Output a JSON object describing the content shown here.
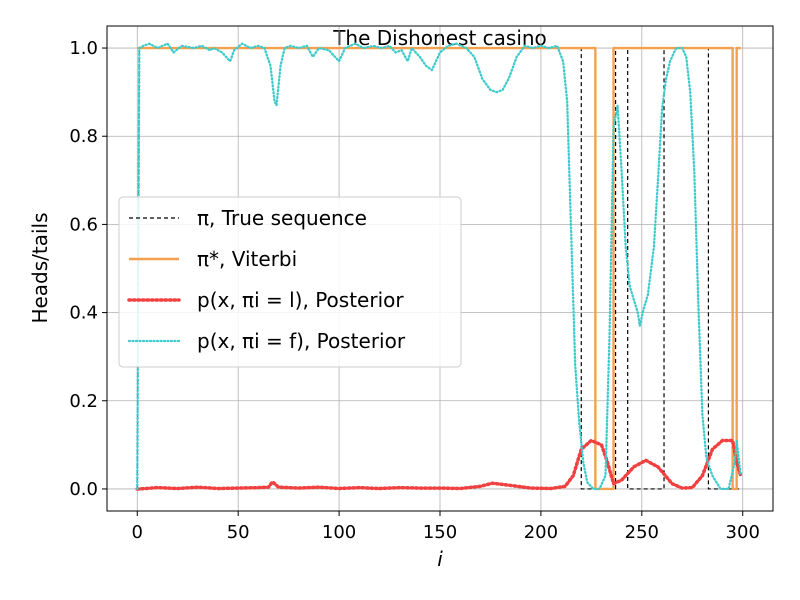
{
  "chart_data": {
    "type": "line",
    "title": "The Dishonest casino",
    "xlabel": "i",
    "ylabel": "Heads/tails",
    "xlim": [
      -15,
      315
    ],
    "ylim": [
      -0.05,
      1.05
    ],
    "xticks": [
      0,
      50,
      100,
      150,
      200,
      250,
      300
    ],
    "xtick_labels": [
      "0",
      "50",
      "100",
      "150",
      "200",
      "250",
      "300"
    ],
    "yticks": [
      0.0,
      0.2,
      0.4,
      0.6,
      0.8,
      1.0
    ],
    "ytick_labels": [
      "0.0",
      "0.2",
      "0.4",
      "0.6",
      "0.8",
      "1.0"
    ],
    "grid": true,
    "legend_position": "center-left",
    "series": [
      {
        "name": "π, True sequence",
        "color": "#000000",
        "style": "dashed",
        "steps": [
          [
            0,
            0
          ],
          [
            1,
            1
          ],
          [
            220,
            1
          ],
          [
            220,
            0
          ],
          [
            237,
            0
          ],
          [
            237,
            1
          ],
          [
            243,
            1
          ],
          [
            243,
            0
          ],
          [
            261,
            0
          ],
          [
            261,
            1
          ],
          [
            283,
            1
          ],
          [
            283,
            0
          ],
          [
            299,
            0
          ]
        ]
      },
      {
        "name": "π*, Viterbi",
        "color": "#f5a04e",
        "style": "solid",
        "steps": [
          [
            0,
            1
          ],
          [
            227,
            1
          ],
          [
            227,
            0
          ],
          [
            236,
            0
          ],
          [
            236,
            1
          ],
          [
            295,
            1
          ],
          [
            295,
            0
          ],
          [
            297,
            0
          ],
          [
            297,
            1
          ],
          [
            299,
            1
          ]
        ]
      },
      {
        "name": "p(x, πi = l), Posterior",
        "color": "#f04040",
        "style": "dotted",
        "points": [
          [
            0,
            0
          ],
          [
            1,
            0
          ],
          [
            10,
            0.003
          ],
          [
            20,
            0.001
          ],
          [
            30,
            0.004
          ],
          [
            40,
            0.001
          ],
          [
            50,
            0.002
          ],
          [
            60,
            0.003
          ],
          [
            65,
            0.004
          ],
          [
            67,
            0.016
          ],
          [
            70,
            0.004
          ],
          [
            80,
            0.002
          ],
          [
            90,
            0.004
          ],
          [
            100,
            0.001
          ],
          [
            110,
            0.003
          ],
          [
            120,
            0.001
          ],
          [
            130,
            0.003
          ],
          [
            140,
            0.002
          ],
          [
            150,
            0.002
          ],
          [
            160,
            0.001
          ],
          [
            170,
            0.006
          ],
          [
            176,
            0.013
          ],
          [
            185,
            0.008
          ],
          [
            195,
            0.002
          ],
          [
            205,
            0.001
          ],
          [
            212,
            0.006
          ],
          [
            216,
            0.03
          ],
          [
            220,
            0.09
          ],
          [
            225,
            0.11
          ],
          [
            230,
            0.1
          ],
          [
            233,
            0.06
          ],
          [
            236,
            0.012
          ],
          [
            240,
            0.02
          ],
          [
            246,
            0.05
          ],
          [
            252,
            0.065
          ],
          [
            258,
            0.05
          ],
          [
            265,
            0.012
          ],
          [
            270,
            0.002
          ],
          [
            275,
            0.003
          ],
          [
            280,
            0.03
          ],
          [
            285,
            0.09
          ],
          [
            290,
            0.11
          ],
          [
            295,
            0.11
          ],
          [
            297,
            0.06
          ],
          [
            299,
            0.03
          ]
        ]
      },
      {
        "name": "p(x, πi = f), Posterior",
        "color": "#3ecbcb",
        "style": "dotted",
        "points": [
          [
            0,
            0
          ],
          [
            1,
            1
          ],
          [
            3,
            1.005
          ],
          [
            6,
            1.01
          ],
          [
            10,
            1.0
          ],
          [
            15,
            1.01
          ],
          [
            18,
            0.99
          ],
          [
            22,
            1.005
          ],
          [
            28,
            1.0
          ],
          [
            32,
            1.005
          ],
          [
            36,
            0.995
          ],
          [
            38,
            1.0
          ],
          [
            42,
            0.99
          ],
          [
            46,
            0.97
          ],
          [
            48,
            0.995
          ],
          [
            52,
            1.01
          ],
          [
            56,
            1.0
          ],
          [
            60,
            1.005
          ],
          [
            63,
            1.0
          ],
          [
            66,
            0.96
          ],
          [
            68,
            0.88
          ],
          [
            69,
            0.87
          ],
          [
            71,
            0.96
          ],
          [
            73,
            1.0
          ],
          [
            76,
            1.005
          ],
          [
            80,
            1.0
          ],
          [
            84,
            1.005
          ],
          [
            87,
            0.98
          ],
          [
            90,
            1.0
          ],
          [
            95,
            0.995
          ],
          [
            98,
            0.98
          ],
          [
            100,
            0.97
          ],
          [
            103,
            1.0
          ],
          [
            108,
            1.01
          ],
          [
            112,
            1.0
          ],
          [
            117,
            1.005
          ],
          [
            121,
            1.0
          ],
          [
            125,
            1.005
          ],
          [
            128,
            0.99
          ],
          [
            131,
            0.995
          ],
          [
            134,
            0.97
          ],
          [
            136,
            1.0
          ],
          [
            140,
            0.98
          ],
          [
            143,
            0.96
          ],
          [
            146,
            0.95
          ],
          [
            150,
            0.99
          ],
          [
            154,
            1.005
          ],
          [
            158,
            1.01
          ],
          [
            163,
            1.0
          ],
          [
            167,
            0.98
          ],
          [
            171,
            0.93
          ],
          [
            175,
            0.905
          ],
          [
            178,
            0.9
          ],
          [
            181,
            0.905
          ],
          [
            184,
            0.93
          ],
          [
            188,
            0.98
          ],
          [
            192,
            1.005
          ],
          [
            196,
            1.0
          ],
          [
            200,
            1.005
          ],
          [
            204,
            1.0
          ],
          [
            208,
            1.005
          ],
          [
            211,
            0.97
          ],
          [
            213,
            0.88
          ],
          [
            215,
            0.58
          ],
          [
            217,
            0.28
          ],
          [
            219,
            0.15
          ],
          [
            221,
            0.06
          ],
          [
            223,
            0.015
          ],
          [
            226,
            0.0
          ],
          [
            229,
            0.0
          ],
          [
            232,
            0.03
          ],
          [
            234,
            0.35
          ],
          [
            236,
            0.82
          ],
          [
            238,
            0.87
          ],
          [
            240,
            0.72
          ],
          [
            242,
            0.55
          ],
          [
            244,
            0.46
          ],
          [
            246,
            0.43
          ],
          [
            248,
            0.4
          ],
          [
            249,
            0.37
          ],
          [
            251,
            0.41
          ],
          [
            253,
            0.44
          ],
          [
            256,
            0.55
          ],
          [
            258,
            0.7
          ],
          [
            260,
            0.86
          ],
          [
            262,
            0.93
          ],
          [
            264,
            0.97
          ],
          [
            267,
            1.0
          ],
          [
            270,
            1.0
          ],
          [
            272,
            0.98
          ],
          [
            274,
            0.9
          ],
          [
            276,
            0.72
          ],
          [
            278,
            0.42
          ],
          [
            280,
            0.17
          ],
          [
            282,
            0.07
          ],
          [
            285,
            0.03
          ],
          [
            289,
            0.0
          ],
          [
            293,
            0.0
          ],
          [
            296,
            0.06
          ],
          [
            297,
            0.11
          ],
          [
            299,
            0.03
          ]
        ]
      }
    ],
    "legend": [
      {
        "label": "π, True sequence",
        "color": "#000000",
        "style": "dashed"
      },
      {
        "label": "π*, Viterbi",
        "color": "#f5a04e",
        "style": "solid"
      },
      {
        "label": "p(x, πi = l), Posterior",
        "color": "#f04040",
        "style": "dotted"
      },
      {
        "label": "p(x, πi = f), Posterior",
        "color": "#3ecbcb",
        "style": "dotted"
      }
    ]
  }
}
